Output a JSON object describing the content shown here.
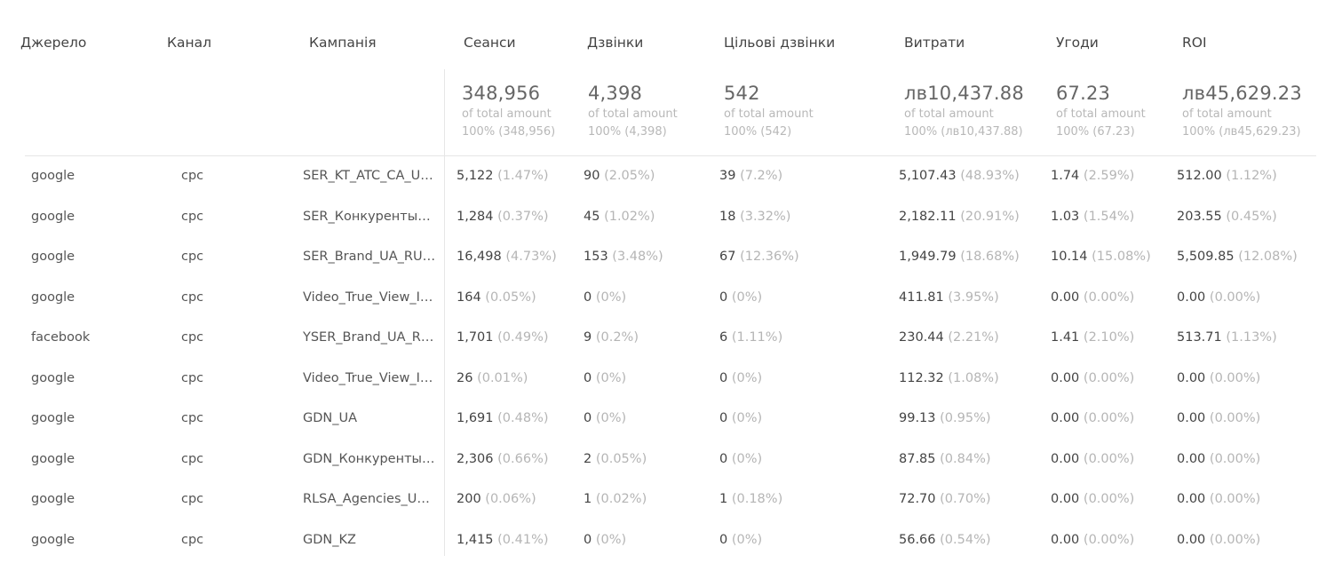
{
  "columns": [
    "Джерело",
    "Канал",
    "Кампанія",
    "Сеанси",
    "Дзвінки",
    "Цільові дзвінки",
    "Витрати",
    "Угоди",
    "ROI"
  ],
  "totals": [
    {
      "value": "348,956",
      "label": "of total amount",
      "pct": "100% (348,956)"
    },
    {
      "value": "4,398",
      "label": "of total amount",
      "pct": "100% (4,398)"
    },
    {
      "value": "542",
      "label": "of total amount",
      "pct": "100% (542)"
    },
    {
      "value": "лв10,437.88",
      "label": "of total amount",
      "pct": "100% (лв10,437.88)"
    },
    {
      "value": "67.23",
      "label": "of total amount",
      "pct": "100% (67.23)"
    },
    {
      "value": "лв45,629.23",
      "label": "of total amount",
      "pct": "100% (лв45,629.23)"
    }
  ],
  "rows": [
    {
      "source": "google",
      "channel": "cpc",
      "campaign": "SER_KT_ATC_CA_UA_RU",
      "sessions": [
        "5,122",
        "(1.47%)"
      ],
      "calls": [
        "90",
        "(2.05%)"
      ],
      "target_calls": [
        "39",
        "(7.2%)"
      ],
      "cost": [
        "5,107.43",
        "(48.93%)"
      ],
      "deals": [
        "1.74",
        "(2.59%)"
      ],
      "roi": [
        "512.00",
        "(1.12%)"
      ]
    },
    {
      "source": "google",
      "channel": "cpc",
      "campaign": "SER_Конкуренты_UA_RU",
      "sessions": [
        "1,284",
        "(0.37%)"
      ],
      "calls": [
        "45",
        "(1.02%)"
      ],
      "target_calls": [
        "18",
        "(3.32%)"
      ],
      "cost": [
        "2,182.11",
        "(20.91%)"
      ],
      "deals": [
        "1.03",
        "(1.54%)"
      ],
      "roi": [
        "203.55",
        "(0.45%)"
      ]
    },
    {
      "source": "google",
      "channel": "cpc",
      "campaign": "SER_Brand_UA_RU_Search",
      "sessions": [
        "16,498",
        "(4.73%)"
      ],
      "calls": [
        "153",
        "(3.48%)"
      ],
      "target_calls": [
        "67",
        "(12.36%)"
      ],
      "cost": [
        "1,949.79",
        "(18.68%)"
      ],
      "deals": [
        "10.14",
        "(15.08%)"
      ],
      "roi": [
        "5,509.85",
        "(12.08%)"
      ]
    },
    {
      "source": "google",
      "channel": "cpc",
      "campaign": "Video_True_View_InStream",
      "sessions": [
        "164",
        "(0.05%)"
      ],
      "calls": [
        "0",
        "(0%)"
      ],
      "target_calls": [
        "0",
        "(0%)"
      ],
      "cost": [
        "411.81",
        "(3.95%)"
      ],
      "deals": [
        "0.00",
        "(0.00%)"
      ],
      "roi": [
        "0.00",
        "(0.00%)"
      ]
    },
    {
      "source": "facebook",
      "channel": "cpc",
      "campaign": "YSER_Brand_UA_RU_Search",
      "sessions": [
        "1,701",
        "(0.49%)"
      ],
      "calls": [
        "9",
        "(0.2%)"
      ],
      "target_calls": [
        "6",
        "(1.11%)"
      ],
      "cost": [
        "230.44",
        "(2.21%)"
      ],
      "deals": [
        "1.41",
        "(2.10%)"
      ],
      "roi": [
        "513.71",
        "(1.13%)"
      ]
    },
    {
      "source": "google",
      "channel": "cpc",
      "campaign": "Video_True_View_InDisplay",
      "sessions": [
        "26",
        "(0.01%)"
      ],
      "calls": [
        "0",
        "(0%)"
      ],
      "target_calls": [
        "0",
        "(0%)"
      ],
      "cost": [
        "112.32",
        "(1.08%)"
      ],
      "deals": [
        "0.00",
        "(0.00%)"
      ],
      "roi": [
        "0.00",
        "(0.00%)"
      ]
    },
    {
      "source": "google",
      "channel": "cpc",
      "campaign": "GDN_UA",
      "sessions": [
        "1,691",
        "(0.48%)"
      ],
      "calls": [
        "0",
        "(0%)"
      ],
      "target_calls": [
        "0",
        "(0%)"
      ],
      "cost": [
        "99.13",
        "(0.95%)"
      ],
      "deals": [
        "0.00",
        "(0.00%)"
      ],
      "roi": [
        "0.00",
        "(0.00%)"
      ]
    },
    {
      "source": "google",
      "channel": "cpc",
      "campaign": "GDN_Конкуренты_UA",
      "sessions": [
        "2,306",
        "(0.66%)"
      ],
      "calls": [
        "2",
        "(0.05%)"
      ],
      "target_calls": [
        "0",
        "(0%)"
      ],
      "cost": [
        "87.85",
        "(0.84%)"
      ],
      "deals": [
        "0.00",
        "(0.00%)"
      ],
      "roi": [
        "0.00",
        "(0.00%)"
      ]
    },
    {
      "source": "google",
      "channel": "cpc",
      "campaign": "RLSA_Agencies_UA_RU",
      "sessions": [
        "200",
        "(0.06%)"
      ],
      "calls": [
        "1",
        "(0.02%)"
      ],
      "target_calls": [
        "1",
        "(0.18%)"
      ],
      "cost": [
        "72.70",
        "(0.70%)"
      ],
      "deals": [
        "0.00",
        "(0.00%)"
      ],
      "roi": [
        "0.00",
        "(0.00%)"
      ]
    },
    {
      "source": "google",
      "channel": "cpc",
      "campaign": "GDN_KZ",
      "sessions": [
        "1,415",
        "(0.41%)"
      ],
      "calls": [
        "0",
        "(0%)"
      ],
      "target_calls": [
        "0",
        "(0%)"
      ],
      "cost": [
        "56.66",
        "(0.54%)"
      ],
      "deals": [
        "0.00",
        "(0.00%)"
      ],
      "roi": [
        "0.00",
        "(0.00%)"
      ]
    }
  ]
}
